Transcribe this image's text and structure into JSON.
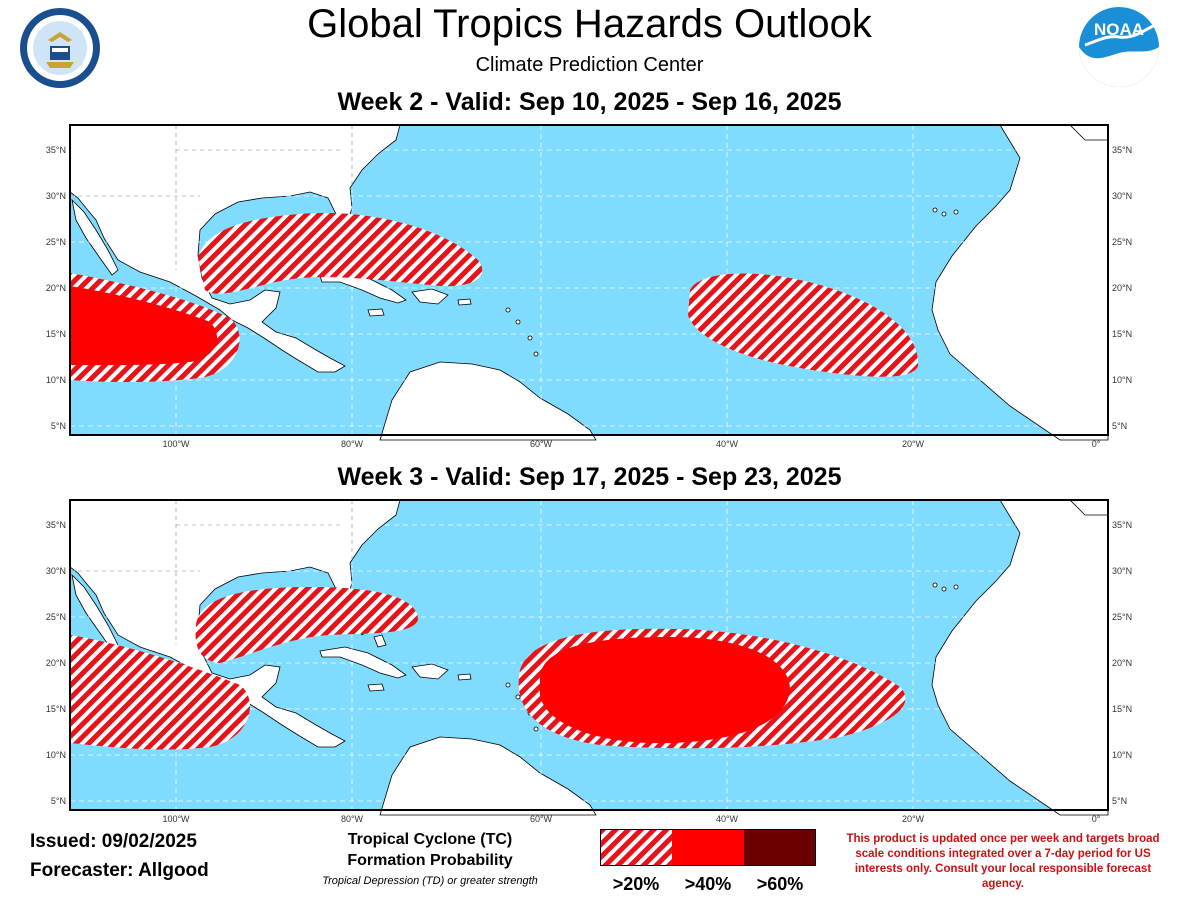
{
  "header": {
    "title": "Global Tropics Hazards Outlook",
    "subtitle": "Climate Prediction Center"
  },
  "logos": {
    "left": {
      "icon": "department-of-commerce-seal",
      "text": "DEPARTMENT OF COMMERCE · UNITED STATES OF AMERICA"
    },
    "right": {
      "icon": "noaa-logo",
      "text": "NOAA"
    }
  },
  "weeks": [
    {
      "title": "Week 2 - Valid: Sep 10, 2025 - Sep 16, 2025"
    },
    {
      "title": "Week 3 - Valid: Sep 17, 2025 - Sep 23, 2025"
    }
  ],
  "map_axes": {
    "lon_ticks": [
      "100°W",
      "80°W",
      "60°W",
      "40°W",
      "20°W",
      "0°"
    ],
    "lat_ticks": [
      "35°N",
      "30°N",
      "25°N",
      "20°N",
      "15°N",
      "10°N",
      "5°N"
    ]
  },
  "footer": {
    "issued": "Issued: 09/02/2025",
    "forecaster": "Forecaster: Allgood",
    "legend_title_line1": "Tropical Cyclone (TC)",
    "legend_title_line2": "Formation Probability",
    "legend_subtitle": "Tropical Depression (TD) or greater strength",
    "legend_labels": [
      ">20%",
      ">40%",
      ">60%"
    ],
    "disclaimer": "This product is updated once per week and targets broad scale conditions integrated over a 7-day period for US interests only. Consult your local responsible forecast agency."
  },
  "colors": {
    "ocean": "#7fdcff",
    "land": "#ffffff",
    "hazard_20": "#e8121a",
    "hazard_40": "#ff0000",
    "hazard_60": "#6b0000",
    "disclaimer_text": "#cc1111"
  }
}
